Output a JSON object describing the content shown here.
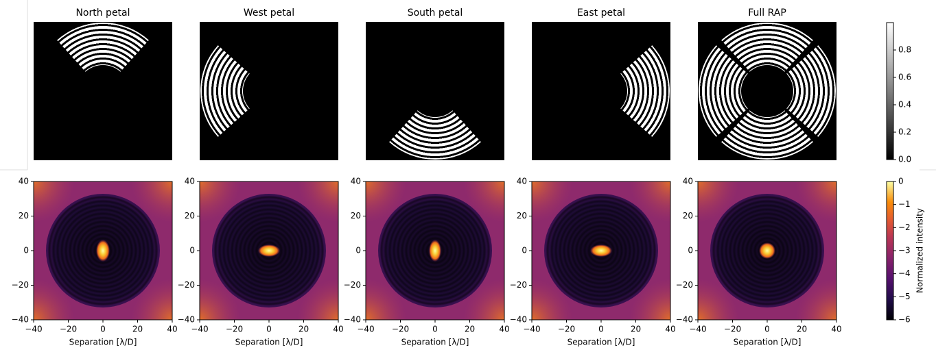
{
  "chart_data": [
    {
      "type": "image",
      "title": "North petal",
      "cmap": "gray"
    },
    {
      "type": "image",
      "title": "West petal",
      "cmap": "gray"
    },
    {
      "type": "image",
      "title": "South petal",
      "cmap": "gray"
    },
    {
      "type": "image",
      "title": "East petal",
      "cmap": "gray"
    },
    {
      "type": "image",
      "title": "Full RAP",
      "cmap": "gray"
    },
    {
      "type": "image",
      "cmap": "inferno",
      "xlabel": "Separation [λ/D]",
      "xlim": [
        -40,
        40
      ],
      "ylim": [
        -40,
        40
      ],
      "xticks": [
        {
          "value": -40,
          "label": "−40"
        },
        {
          "value": -20,
          "label": "−20"
        },
        0,
        20,
        40
      ],
      "yticks": [
        {
          "value": -40,
          "label": "−40"
        },
        {
          "value": -20,
          "label": "−20"
        },
        0,
        20,
        40
      ]
    },
    {
      "type": "image",
      "cmap": "inferno",
      "xlabel": "Separation [λ/D]",
      "xlim": [
        -40,
        40
      ],
      "ylim": [
        -40,
        40
      ],
      "xticks": [
        {
          "value": -40,
          "label": "−40"
        },
        {
          "value": -20,
          "label": "−20"
        },
        0,
        20,
        40
      ],
      "yticks": [
        {
          "value": -40,
          "label": "−40"
        },
        {
          "value": -20,
          "label": "−20"
        },
        0,
        20,
        40
      ]
    },
    {
      "type": "image",
      "cmap": "inferno",
      "xlabel": "Separation [λ/D]",
      "xlim": [
        -40,
        40
      ],
      "ylim": [
        -40,
        40
      ],
      "xticks": [
        {
          "value": -40,
          "label": "−40"
        },
        {
          "value": -20,
          "label": "−20"
        },
        0,
        20,
        40
      ],
      "yticks": [
        {
          "value": -40,
          "label": "−40"
        },
        {
          "value": -20,
          "label": "−20"
        },
        0,
        20,
        40
      ]
    },
    {
      "type": "image",
      "cmap": "inferno",
      "xlabel": "Separation [λ/D]",
      "xlim": [
        -40,
        40
      ],
      "ylim": [
        -40,
        40
      ],
      "xticks": [
        {
          "value": -40,
          "label": "−40"
        },
        {
          "value": -20,
          "label": "−20"
        },
        0,
        20,
        40
      ],
      "yticks": [
        {
          "value": -40,
          "label": "−40"
        },
        {
          "value": -20,
          "label": "−20"
        },
        0,
        20,
        40
      ]
    },
    {
      "type": "image",
      "cmap": "inferno",
      "xlabel": "Separation [λ/D]",
      "xlim": [
        -40,
        40
      ],
      "ylim": [
        -40,
        40
      ],
      "xticks": [
        {
          "value": -40,
          "label": "−40"
        },
        {
          "value": -20,
          "label": "−20"
        },
        0,
        20,
        40
      ],
      "yticks": [
        {
          "value": -40,
          "label": "−40"
        },
        {
          "value": -20,
          "label": "−20"
        },
        0,
        20,
        40
      ]
    },
    {
      "type": "colorbar",
      "cmap": "gray",
      "ylim": [
        0,
        1
      ],
      "yticks": [
        {
          "value": 0,
          "label": "0.0"
        },
        {
          "value": 0.2,
          "label": "0.2"
        },
        {
          "value": 0.4,
          "label": "0.4"
        },
        {
          "value": 0.6,
          "label": "0.6"
        },
        {
          "value": 0.8,
          "label": "0.8"
        }
      ]
    },
    {
      "type": "colorbar",
      "cmap": "inferno",
      "label": "Normalized intensity",
      "ylim": [
        -6,
        0
      ],
      "yticks": [
        {
          "value": -6,
          "label": "−6"
        },
        {
          "value": -5,
          "label": "−5"
        },
        {
          "value": -4,
          "label": "−4"
        },
        {
          "value": -3,
          "label": "−3"
        },
        {
          "value": -2,
          "label": "−2"
        },
        {
          "value": -1,
          "label": "−1"
        },
        0
      ]
    }
  ]
}
